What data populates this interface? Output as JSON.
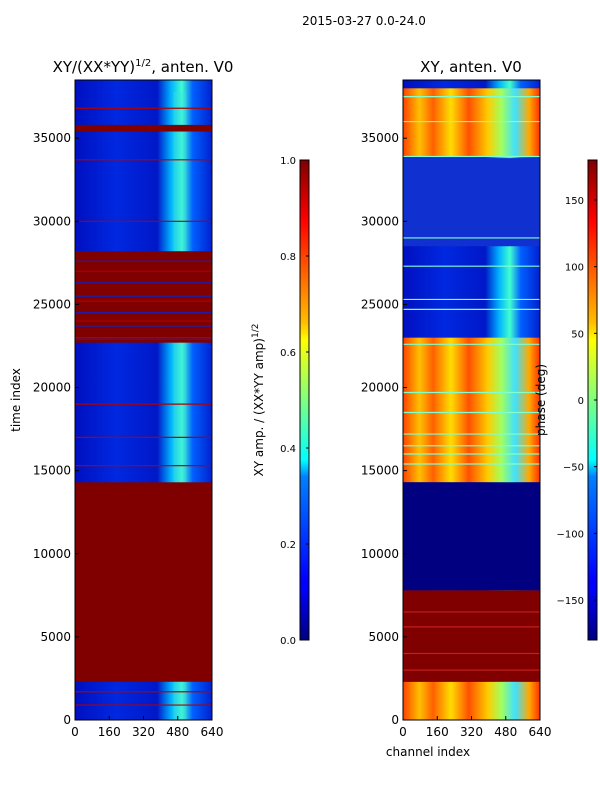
{
  "suptitle": "2015-03-27 0.0-24.0",
  "chart_data": [
    {
      "type": "heatmap",
      "title_main": "XY/(XX*YY)",
      "title_sup": "1/2",
      "title_suffix": ", anten. V0",
      "xlabel": "",
      "ylabel": "time index",
      "xlim": [
        0,
        640
      ],
      "ylim": [
        0,
        38500
      ],
      "xticks": [
        0,
        160,
        320,
        480,
        640
      ],
      "yticks": [
        0,
        5000,
        10000,
        15000,
        20000,
        25000,
        30000,
        35000
      ],
      "colorbar": {
        "label_main": "XY amp. / (XX*YY amp)",
        "label_sup": "1/2",
        "range": [
          0.0,
          1.0
        ],
        "ticks": [
          0.0,
          0.2,
          0.4,
          0.6,
          0.8,
          1.0
        ],
        "tick_labels": [
          "0.0",
          "0.2",
          "0.4",
          "0.6",
          "0.8",
          "1.0"
        ],
        "colormap": "jet"
      },
      "saturated_bands": [
        [
          2300,
          14300
        ],
        [
          22700,
          28200
        ],
        [
          35400,
          35800
        ]
      ],
      "saturated_value": 1.0,
      "background_value": 0.12
    },
    {
      "type": "heatmap",
      "title_main": "XY, anten. V0",
      "xlabel": "channel index",
      "ylabel": "",
      "xlim": [
        0,
        640
      ],
      "ylim": [
        0,
        38500
      ],
      "xticks": [
        0,
        160,
        320,
        480,
        640
      ],
      "yticks": [
        0,
        5000,
        10000,
        15000,
        20000,
        25000,
        30000,
        35000
      ],
      "colorbar": {
        "label_main": "phase (deg)",
        "range": [
          -180,
          180
        ],
        "ticks": [
          -150,
          -100,
          -50,
          0,
          50,
          100,
          150
        ],
        "tick_labels": [
          "−150",
          "−100",
          "−50",
          "0",
          "50",
          "100",
          "150"
        ],
        "colormap": "jet"
      },
      "saturated_bands": [
        [
          2300,
          7800
        ]
      ],
      "saturated_value": 180,
      "low_band": [
        7800,
        14300
      ],
      "low_value": -180
    }
  ],
  "colors": {
    "jet_dark_blue": "#00007f",
    "jet_blue": "#0000ff",
    "jet_cyan": "#00ffff",
    "jet_yellow": "#ffff00",
    "jet_red": "#ff0000",
    "jet_dark_red": "#7f0000"
  }
}
